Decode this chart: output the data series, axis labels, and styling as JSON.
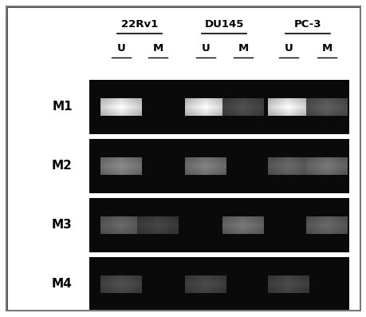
{
  "cell_lines": [
    "22Rv1",
    "DU145",
    "PC-3"
  ],
  "row_labels": [
    "M1",
    "M2",
    "M3",
    "M4"
  ],
  "bands": {
    "M1": [
      1.0,
      0.0,
      1.0,
      0.32,
      1.0,
      0.38
    ],
    "M2": [
      0.55,
      0.0,
      0.52,
      0.0,
      0.42,
      0.48
    ],
    "M3": [
      0.42,
      0.28,
      0.0,
      0.48,
      0.0,
      0.42
    ],
    "M4": [
      0.32,
      0.0,
      0.3,
      0.0,
      0.3,
      0.0
    ]
  },
  "fig_bg": "#ffffff",
  "outer_border": "#888888",
  "gel_bg": "#080808",
  "row_label_color": "#000000"
}
